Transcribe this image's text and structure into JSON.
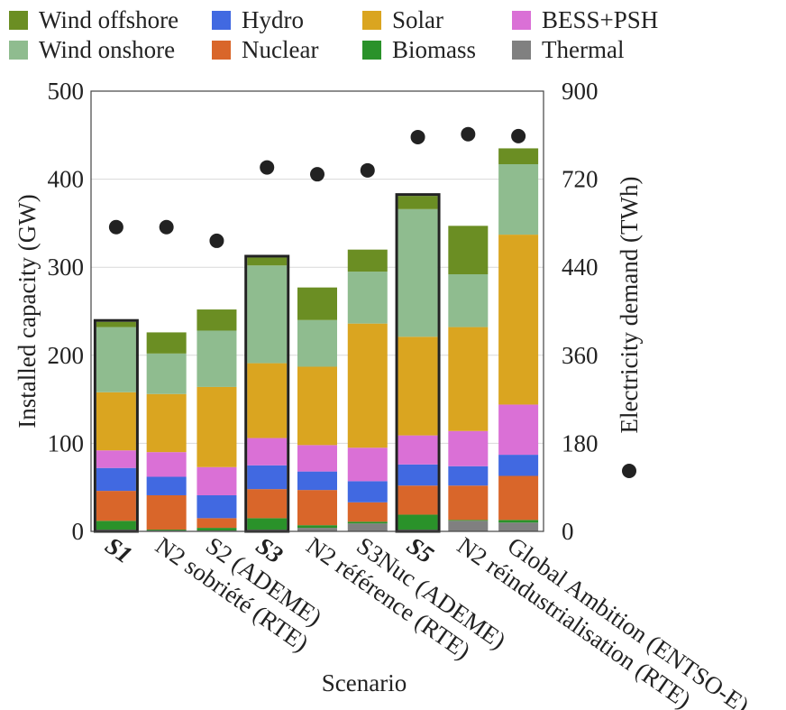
{
  "chart_data": {
    "type": "bar",
    "stacked": true,
    "xlabel": "Scenario",
    "ylabel": "Installed capacity (GW)",
    "y2label": "Electricity demand (TWh)",
    "ylim": [
      0,
      500
    ],
    "y2lim": [
      0,
      900
    ],
    "yticks": [
      "0",
      "100",
      "200",
      "300",
      "400",
      "500"
    ],
    "y2ticks": [
      "0",
      "180",
      "360",
      "440",
      "720",
      "900"
    ],
    "categories": [
      "S1",
      "N2 sobriété (RTE)",
      "S2 (ADEME)",
      "S3",
      "N2 référence (RTE)",
      "S3Nuc (ADEME)",
      "S5",
      "N2 réindustrialisation (RTE)",
      "Global Ambition (ENTSO-E)"
    ],
    "bold_categories": [
      "S1",
      "S3",
      "S5"
    ],
    "highlighted": [
      0,
      3,
      6
    ],
    "series": [
      {
        "name": "Thermal",
        "color": "#808080",
        "values": [
          2,
          1,
          1,
          2,
          4,
          9,
          2,
          12,
          10
        ]
      },
      {
        "name": "Biomass",
        "color": "#2a922a",
        "values": [
          10,
          1,
          3,
          13,
          3,
          2,
          17,
          1,
          3
        ]
      },
      {
        "name": "Nuclear",
        "color": "#d9662a",
        "values": [
          34,
          39,
          11,
          33,
          40,
          22,
          33,
          39,
          50
        ]
      },
      {
        "name": "Hydro",
        "color": "#4169e1",
        "values": [
          26,
          21,
          26,
          27,
          21,
          24,
          24,
          22,
          24
        ]
      },
      {
        "name": "BESS+PSH",
        "color": "#da70d6",
        "values": [
          20,
          28,
          32,
          31,
          30,
          38,
          33,
          40,
          57
        ]
      },
      {
        "name": "Solar",
        "color": "#daa520",
        "values": [
          66,
          66,
          91,
          85,
          89,
          141,
          112,
          118,
          193
        ]
      },
      {
        "name": "Wind onshore",
        "color": "#8fbc8f",
        "values": [
          74,
          46,
          64,
          111,
          53,
          59,
          145,
          60,
          80
        ]
      },
      {
        "name": "Wind offshore",
        "color": "#6b8e23",
        "values": [
          6,
          24,
          24,
          9,
          37,
          25,
          15,
          55,
          18
        ]
      }
    ],
    "demand": {
      "name": "Electricity demand (TWh)",
      "color": "#222222",
      "values": [
        622,
        622,
        594,
        744,
        730,
        738,
        806,
        812,
        808
      ]
    },
    "legend": [
      {
        "label": "Wind offshore",
        "color": "#6b8e23"
      },
      {
        "label": "Hydro",
        "color": "#4169e1"
      },
      {
        "label": "Solar",
        "color": "#daa520"
      },
      {
        "label": "BESS+PSH",
        "color": "#da70d6"
      },
      {
        "label": "Wind onshore",
        "color": "#8fbc8f"
      },
      {
        "label": "Nuclear",
        "color": "#d9662a"
      },
      {
        "label": "Biomass",
        "color": "#2a922a"
      },
      {
        "label": "Thermal",
        "color": "#808080"
      }
    ],
    "grid": true,
    "legend_position": "top"
  }
}
